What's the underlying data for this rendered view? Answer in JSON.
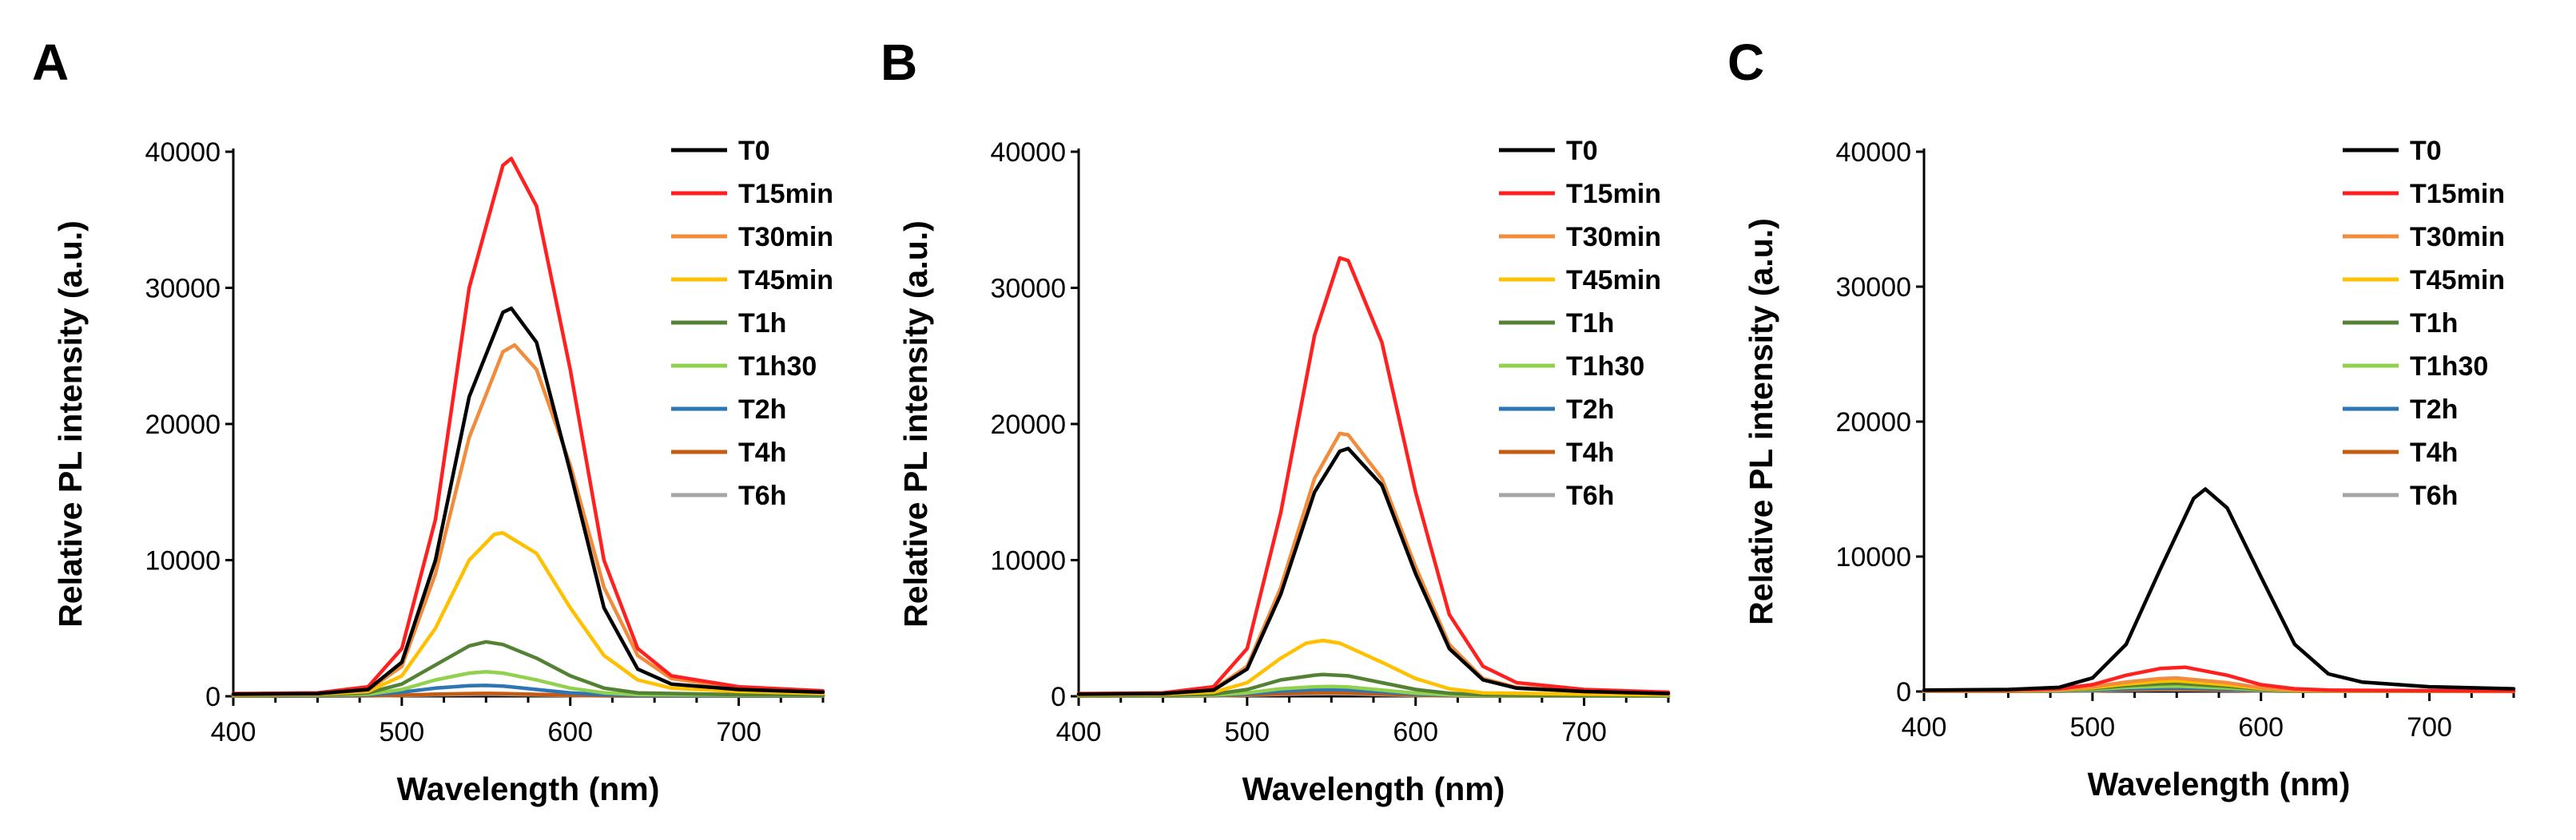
{
  "chart_data": [
    {
      "panel": "A",
      "type": "line",
      "xlabel": "Wavelength (nm)",
      "ylabel": "Relative PL intensity (a.u.)",
      "xlim": [
        400,
        750
      ],
      "ylim": [
        0,
        40000
      ],
      "xticks": [
        400,
        500,
        600,
        700
      ],
      "yticks": [
        0,
        10000,
        20000,
        30000,
        40000
      ],
      "legend_position": "top-right",
      "series": [
        {
          "name": "T0",
          "color": "#000000",
          "x": [
            400,
            450,
            480,
            500,
            520,
            540,
            560,
            565,
            580,
            600,
            620,
            640,
            660,
            700,
            750
          ],
          "y": [
            150,
            200,
            500,
            2500,
            10000,
            22000,
            28200,
            28500,
            26000,
            16500,
            6500,
            2000,
            900,
            500,
            300
          ]
        },
        {
          "name": "T15min",
          "color": "#ff2020",
          "x": [
            400,
            450,
            480,
            500,
            520,
            540,
            560,
            565,
            580,
            600,
            620,
            640,
            660,
            700,
            750
          ],
          "y": [
            200,
            250,
            700,
            3500,
            13000,
            30000,
            39000,
            39500,
            36000,
            24000,
            10000,
            3500,
            1500,
            700,
            400
          ]
        },
        {
          "name": "T30min",
          "color": "#f08c3c",
          "x": [
            400,
            450,
            480,
            500,
            520,
            540,
            560,
            567,
            580,
            600,
            620,
            640,
            660,
            700,
            750
          ],
          "y": [
            150,
            200,
            450,
            2200,
            9000,
            19000,
            25300,
            25800,
            24000,
            17000,
            8000,
            3000,
            1300,
            600,
            350
          ]
        },
        {
          "name": "T45min",
          "color": "#ffc000",
          "x": [
            400,
            450,
            480,
            500,
            520,
            540,
            555,
            560,
            580,
            600,
            620,
            640,
            660,
            700,
            750
          ],
          "y": [
            100,
            150,
            350,
            1500,
            5000,
            10000,
            11900,
            12000,
            10500,
            6500,
            3000,
            1200,
            600,
            350,
            200
          ]
        },
        {
          "name": "T1h",
          "color": "#548235",
          "x": [
            400,
            450,
            480,
            500,
            520,
            540,
            550,
            560,
            580,
            600,
            620,
            640,
            700,
            750
          ],
          "y": [
            80,
            100,
            250,
            900,
            2300,
            3700,
            4000,
            3800,
            2800,
            1500,
            600,
            250,
            120,
            80
          ]
        },
        {
          "name": "T1h30",
          "color": "#92d050",
          "x": [
            400,
            450,
            480,
            500,
            520,
            540,
            550,
            560,
            580,
            600,
            620,
            640,
            700,
            750
          ],
          "y": [
            60,
            80,
            150,
            500,
            1200,
            1700,
            1800,
            1700,
            1200,
            600,
            250,
            120,
            80,
            60
          ]
        },
        {
          "name": "T2h",
          "color": "#2e75b6",
          "x": [
            400,
            450,
            480,
            500,
            520,
            540,
            550,
            560,
            580,
            600,
            620,
            640,
            700,
            750
          ],
          "y": [
            40,
            50,
            100,
            300,
            600,
            780,
            800,
            750,
            500,
            250,
            120,
            60,
            40,
            30
          ]
        },
        {
          "name": "T4h",
          "color": "#c55a11",
          "x": [
            400,
            450,
            480,
            500,
            520,
            540,
            550,
            560,
            580,
            600,
            620,
            640,
            700,
            750
          ],
          "y": [
            20,
            25,
            40,
            80,
            150,
            200,
            210,
            200,
            140,
            80,
            40,
            25,
            20,
            15
          ]
        },
        {
          "name": "T6h",
          "color": "#a5a5a5",
          "x": [
            400,
            450,
            480,
            500,
            520,
            540,
            550,
            560,
            580,
            600,
            620,
            640,
            700,
            750
          ],
          "y": [
            15,
            20,
            30,
            60,
            110,
            140,
            150,
            140,
            100,
            60,
            30,
            20,
            15,
            10
          ]
        }
      ]
    },
    {
      "panel": "B",
      "type": "line",
      "xlabel": "Wavelength (nm)",
      "ylabel": "Relative PL intensity (a.u.)",
      "xlim": [
        400,
        750
      ],
      "ylim": [
        0,
        40000
      ],
      "xticks": [
        400,
        500,
        600,
        700
      ],
      "yticks": [
        0,
        10000,
        20000,
        30000,
        40000
      ],
      "legend_position": "top-right",
      "series": [
        {
          "name": "T0",
          "color": "#000000",
          "x": [
            400,
            450,
            480,
            500,
            520,
            540,
            555,
            560,
            580,
            600,
            620,
            640,
            660,
            700,
            750
          ],
          "y": [
            150,
            200,
            450,
            2000,
            7500,
            15000,
            18000,
            18200,
            15500,
            9000,
            3500,
            1200,
            600,
            350,
            200
          ]
        },
        {
          "name": "T15min",
          "color": "#ff2020",
          "x": [
            400,
            450,
            480,
            500,
            520,
            540,
            555,
            560,
            580,
            600,
            620,
            640,
            660,
            700,
            750
          ],
          "y": [
            200,
            250,
            700,
            3500,
            13500,
            26500,
            32200,
            32000,
            26000,
            15000,
            6000,
            2200,
            1000,
            500,
            300
          ]
        },
        {
          "name": "T30min",
          "color": "#f08c3c",
          "x": [
            400,
            450,
            480,
            500,
            520,
            540,
            555,
            560,
            580,
            600,
            620,
            640,
            660,
            700,
            750
          ],
          "y": [
            150,
            200,
            500,
            2200,
            8000,
            16000,
            19300,
            19200,
            16000,
            9500,
            3800,
            1300,
            650,
            380,
            220
          ]
        },
        {
          "name": "T45min",
          "color": "#ffc000",
          "x": [
            400,
            450,
            480,
            500,
            520,
            535,
            545,
            555,
            580,
            600,
            620,
            640,
            700,
            750
          ],
          "y": [
            100,
            150,
            300,
            1000,
            2800,
            3900,
            4100,
            3900,
            2500,
            1300,
            550,
            250,
            150,
            100
          ]
        },
        {
          "name": "T1h",
          "color": "#548235",
          "x": [
            400,
            450,
            480,
            500,
            520,
            540,
            545,
            560,
            580,
            600,
            620,
            640,
            700,
            750
          ],
          "y": [
            60,
            80,
            150,
            500,
            1200,
            1550,
            1600,
            1500,
            1000,
            500,
            220,
            100,
            60,
            40
          ]
        },
        {
          "name": "T1h30",
          "color": "#92d050",
          "x": [
            400,
            450,
            480,
            500,
            520,
            540,
            550,
            560,
            580,
            600,
            620,
            640,
            700,
            750
          ],
          "y": [
            40,
            50,
            90,
            250,
            550,
            700,
            720,
            680,
            450,
            230,
            100,
            50,
            35,
            25
          ]
        },
        {
          "name": "T2h",
          "color": "#2e75b6",
          "x": [
            400,
            450,
            480,
            500,
            520,
            540,
            550,
            560,
            580,
            600,
            620,
            640,
            700,
            750
          ],
          "y": [
            30,
            40,
            70,
            180,
            380,
            480,
            500,
            470,
            320,
            160,
            80,
            40,
            30,
            20
          ]
        },
        {
          "name": "T4h",
          "color": "#c55a11",
          "x": [
            400,
            450,
            480,
            500,
            520,
            540,
            550,
            560,
            580,
            600,
            620,
            640,
            700,
            750
          ],
          "y": [
            20,
            25,
            40,
            100,
            200,
            260,
            270,
            250,
            170,
            90,
            45,
            25,
            20,
            15
          ]
        },
        {
          "name": "T6h",
          "color": "#a5a5a5",
          "x": [
            400,
            450,
            480,
            500,
            520,
            540,
            550,
            560,
            580,
            600,
            620,
            640,
            700,
            750
          ],
          "y": [
            15,
            20,
            30,
            70,
            140,
            180,
            190,
            180,
            120,
            60,
            30,
            20,
            15,
            10
          ]
        }
      ]
    },
    {
      "panel": "C",
      "type": "line",
      "xlabel": "Wavelength (nm)",
      "ylabel": "Relative PL intensity (a.u.)",
      "xlim": [
        400,
        750
      ],
      "ylim": [
        0,
        40000
      ],
      "xticks": [
        400,
        500,
        600,
        700
      ],
      "yticks": [
        0,
        10000,
        20000,
        30000,
        40000
      ],
      "legend_position": "top-right",
      "series": [
        {
          "name": "T0",
          "color": "#000000",
          "x": [
            400,
            450,
            480,
            500,
            520,
            540,
            560,
            567,
            580,
            600,
            620,
            640,
            660,
            700,
            750
          ],
          "y": [
            100,
            150,
            300,
            1000,
            3500,
            9000,
            14300,
            15000,
            13600,
            8500,
            3500,
            1300,
            700,
            350,
            200
          ]
        },
        {
          "name": "T15min",
          "color": "#ff2020",
          "x": [
            400,
            450,
            480,
            500,
            520,
            540,
            555,
            580,
            600,
            620,
            640,
            700,
            750
          ],
          "y": [
            80,
            100,
            200,
            500,
            1200,
            1700,
            1800,
            1200,
            500,
            200,
            100,
            60,
            40
          ]
        },
        {
          "name": "T30min",
          "color": "#f08c3c",
          "x": [
            400,
            450,
            480,
            500,
            520,
            540,
            550,
            580,
            600,
            620,
            640,
            700,
            750
          ],
          "y": [
            60,
            80,
            150,
            350,
            700,
            950,
            1000,
            650,
            280,
            110,
            60,
            40,
            30
          ]
        },
        {
          "name": "T45min",
          "color": "#ffc000",
          "x": [
            400,
            450,
            480,
            500,
            520,
            540,
            550,
            580,
            600,
            620,
            640,
            700,
            750
          ],
          "y": [
            50,
            60,
            120,
            280,
            550,
            750,
            800,
            500,
            220,
            90,
            50,
            35,
            25
          ]
        },
        {
          "name": "T1h",
          "color": "#548235",
          "x": [
            400,
            450,
            480,
            500,
            520,
            540,
            550,
            580,
            600,
            620,
            640,
            700,
            750
          ],
          "y": [
            40,
            50,
            100,
            220,
            420,
            560,
            600,
            380,
            170,
            70,
            40,
            30,
            20
          ]
        },
        {
          "name": "T1h30",
          "color": "#92d050",
          "x": [
            400,
            450,
            480,
            500,
            520,
            540,
            550,
            580,
            600,
            620,
            640,
            700,
            750
          ],
          "y": [
            30,
            40,
            70,
            150,
            300,
            380,
            400,
            260,
            120,
            50,
            30,
            20,
            15
          ]
        },
        {
          "name": "T2h",
          "color": "#2e75b6",
          "x": [
            400,
            450,
            480,
            500,
            520,
            540,
            550,
            580,
            600,
            620,
            640,
            700,
            750
          ],
          "y": [
            20,
            30,
            50,
            100,
            200,
            260,
            280,
            180,
            80,
            35,
            20,
            15,
            10
          ]
        },
        {
          "name": "T4h",
          "color": "#c55a11",
          "x": [
            400,
            450,
            480,
            500,
            520,
            540,
            550,
            580,
            600,
            620,
            640,
            700,
            750
          ],
          "y": [
            15,
            20,
            35,
            70,
            140,
            180,
            190,
            120,
            55,
            25,
            15,
            10,
            8
          ]
        },
        {
          "name": "T6h",
          "color": "#a5a5a5",
          "x": [
            400,
            450,
            480,
            500,
            520,
            540,
            550,
            580,
            600,
            620,
            640,
            700,
            750
          ],
          "y": [
            10,
            15,
            25,
            50,
            100,
            130,
            140,
            90,
            40,
            20,
            12,
            8,
            6
          ]
        }
      ]
    }
  ]
}
